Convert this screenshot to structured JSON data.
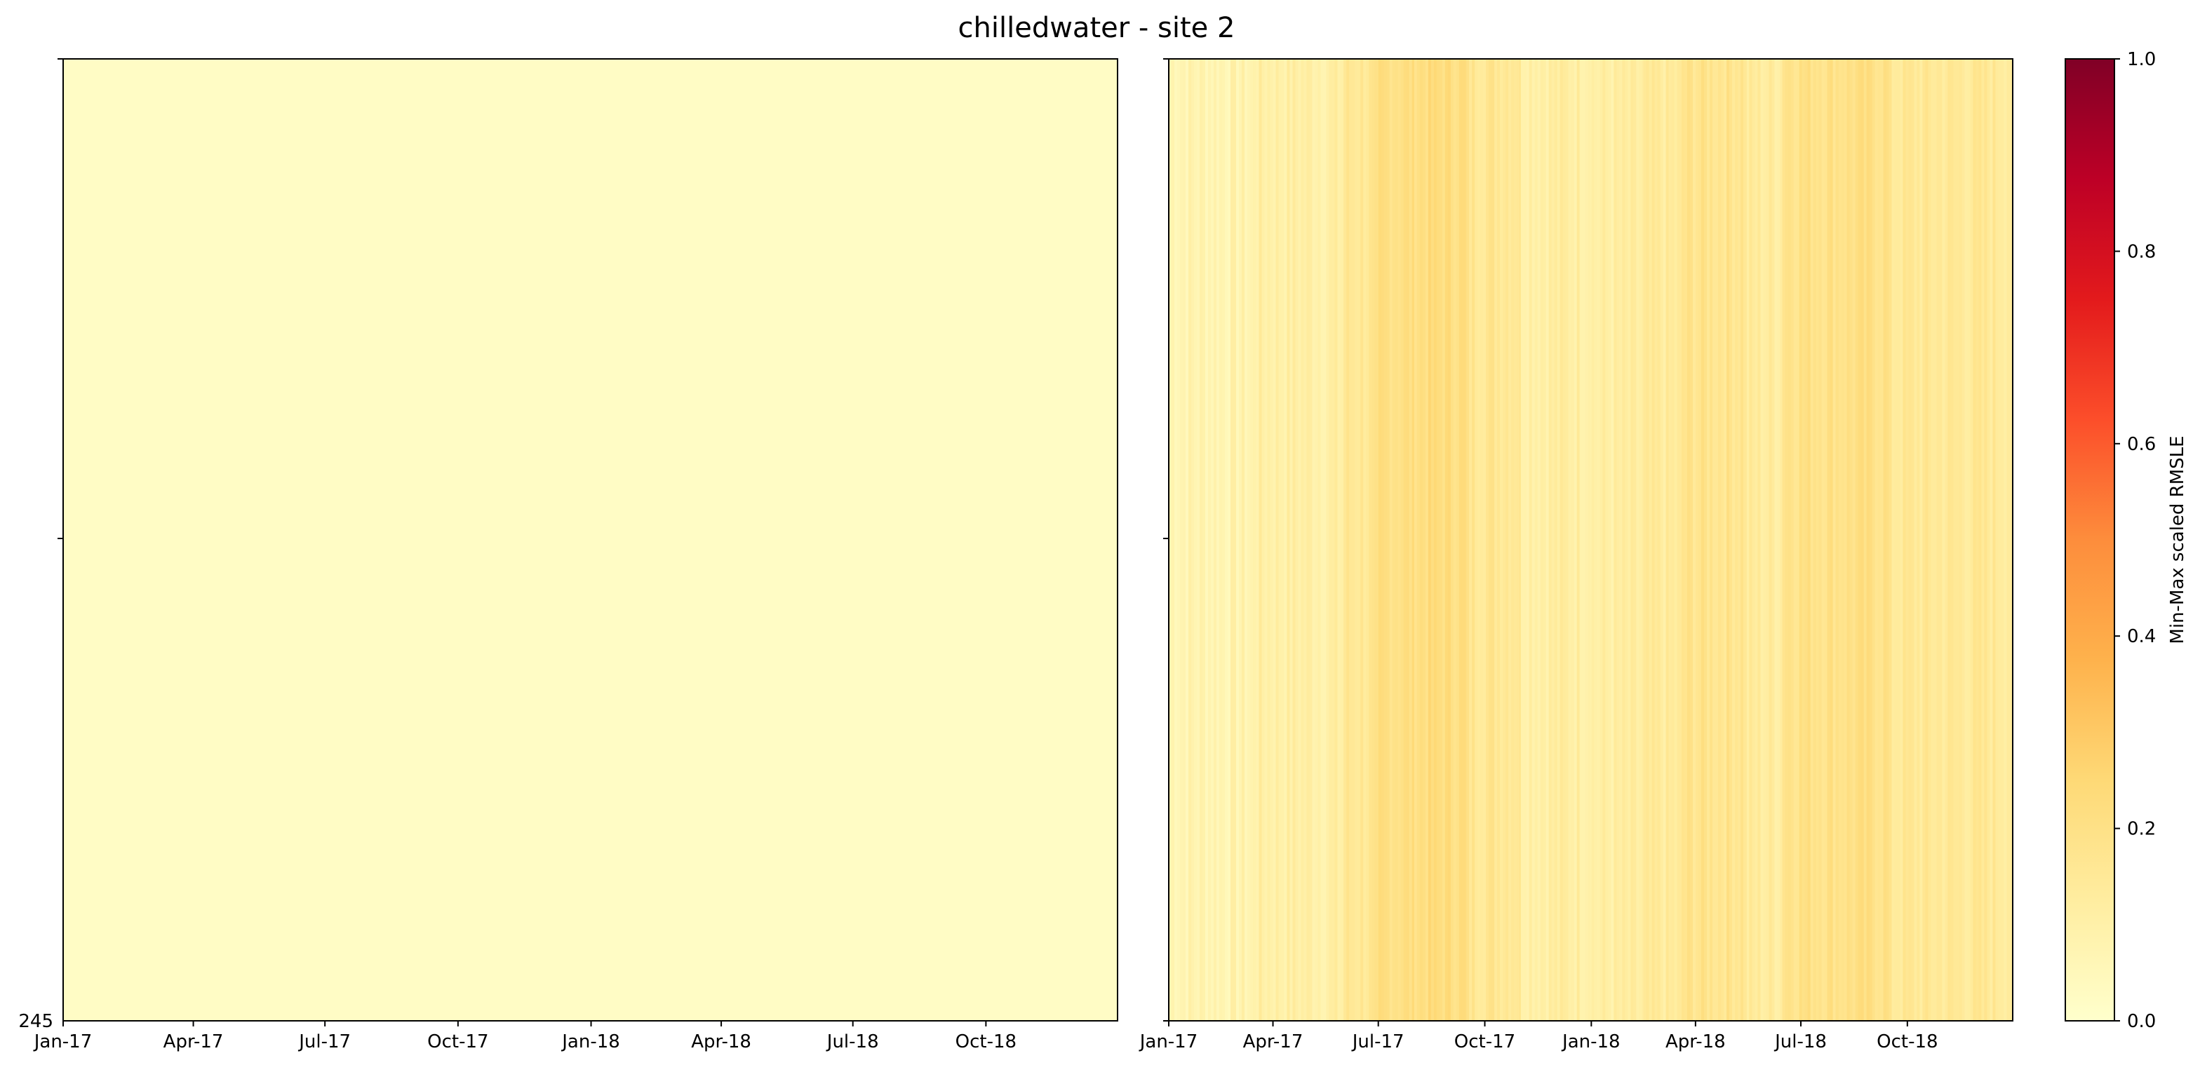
{
  "title": "chilledwater - site 2",
  "chart_data": [
    {
      "type": "heatmap",
      "x_tick_labels": [
        "Jan-17",
        "Apr-17",
        "Jul-17",
        "Oct-17",
        "Jan-18",
        "Apr-18",
        "Jul-18",
        "Oct-18"
      ],
      "x_tick_dates": [
        "2017-01-01",
        "2017-04-01",
        "2017-07-01",
        "2017-10-01",
        "2018-01-01",
        "2018-04-01",
        "2018-07-01",
        "2018-10-01"
      ],
      "x_range": [
        "2017-01-01",
        "2018-12-31"
      ],
      "y_tick_labels": [
        "245"
      ],
      "uniform_value": 0.02
    },
    {
      "type": "heatmap",
      "x_tick_labels": [
        "Jan-17",
        "Apr-17",
        "Jul-17",
        "Oct-17",
        "Jan-18",
        "Apr-18",
        "Jul-18",
        "Oct-18"
      ],
      "x_tick_dates": [
        "2017-01-01",
        "2017-04-01",
        "2017-07-01",
        "2017-10-01",
        "2018-01-01",
        "2018-04-01",
        "2018-07-01",
        "2018-10-01"
      ],
      "x_range": [
        "2017-01-01",
        "2018-12-31"
      ],
      "segments": [
        {
          "start": "2017-01-01",
          "end": "2017-03-15",
          "value": 0.08
        },
        {
          "start": "2017-03-15",
          "end": "2017-06-01",
          "value": 0.11
        },
        {
          "start": "2017-06-01",
          "end": "2017-07-01",
          "value": 0.16
        },
        {
          "start": "2017-07-01",
          "end": "2017-08-01",
          "value": 0.21
        },
        {
          "start": "2017-08-01",
          "end": "2017-09-15",
          "value": 0.22
        },
        {
          "start": "2017-09-15",
          "end": "2017-11-01",
          "value": 0.17
        },
        {
          "start": "2017-11-01",
          "end": "2018-01-01",
          "value": 0.12
        },
        {
          "start": "2018-01-01",
          "end": "2018-02-15",
          "value": 0.11
        },
        {
          "start": "2018-02-15",
          "end": "2018-03-20",
          "value": 0.13
        },
        {
          "start": "2018-03-20",
          "end": "2018-05-15",
          "value": 0.18
        },
        {
          "start": "2018-05-15",
          "end": "2018-06-15",
          "value": 0.13
        },
        {
          "start": "2018-06-15",
          "end": "2018-09-15",
          "value": 0.2
        },
        {
          "start": "2018-09-15",
          "end": "2018-12-31",
          "value": 0.15
        }
      ]
    }
  ],
  "colorbar": {
    "label": "Min-Max scaled RMSLE",
    "range": [
      0,
      1
    ],
    "tick_labels": [
      "0.0",
      "0.2",
      "0.4",
      "0.6",
      "0.8",
      "1.0"
    ],
    "tick_values": [
      0,
      0.2,
      0.4,
      0.6,
      0.8,
      1.0
    ],
    "colormap": "YlOrRd",
    "colors": [
      "#ffffcc",
      "#ffeda0",
      "#fed976",
      "#feb24c",
      "#fd8d3c",
      "#fc4e2a",
      "#e31a1c",
      "#bd0026",
      "#800026"
    ]
  }
}
